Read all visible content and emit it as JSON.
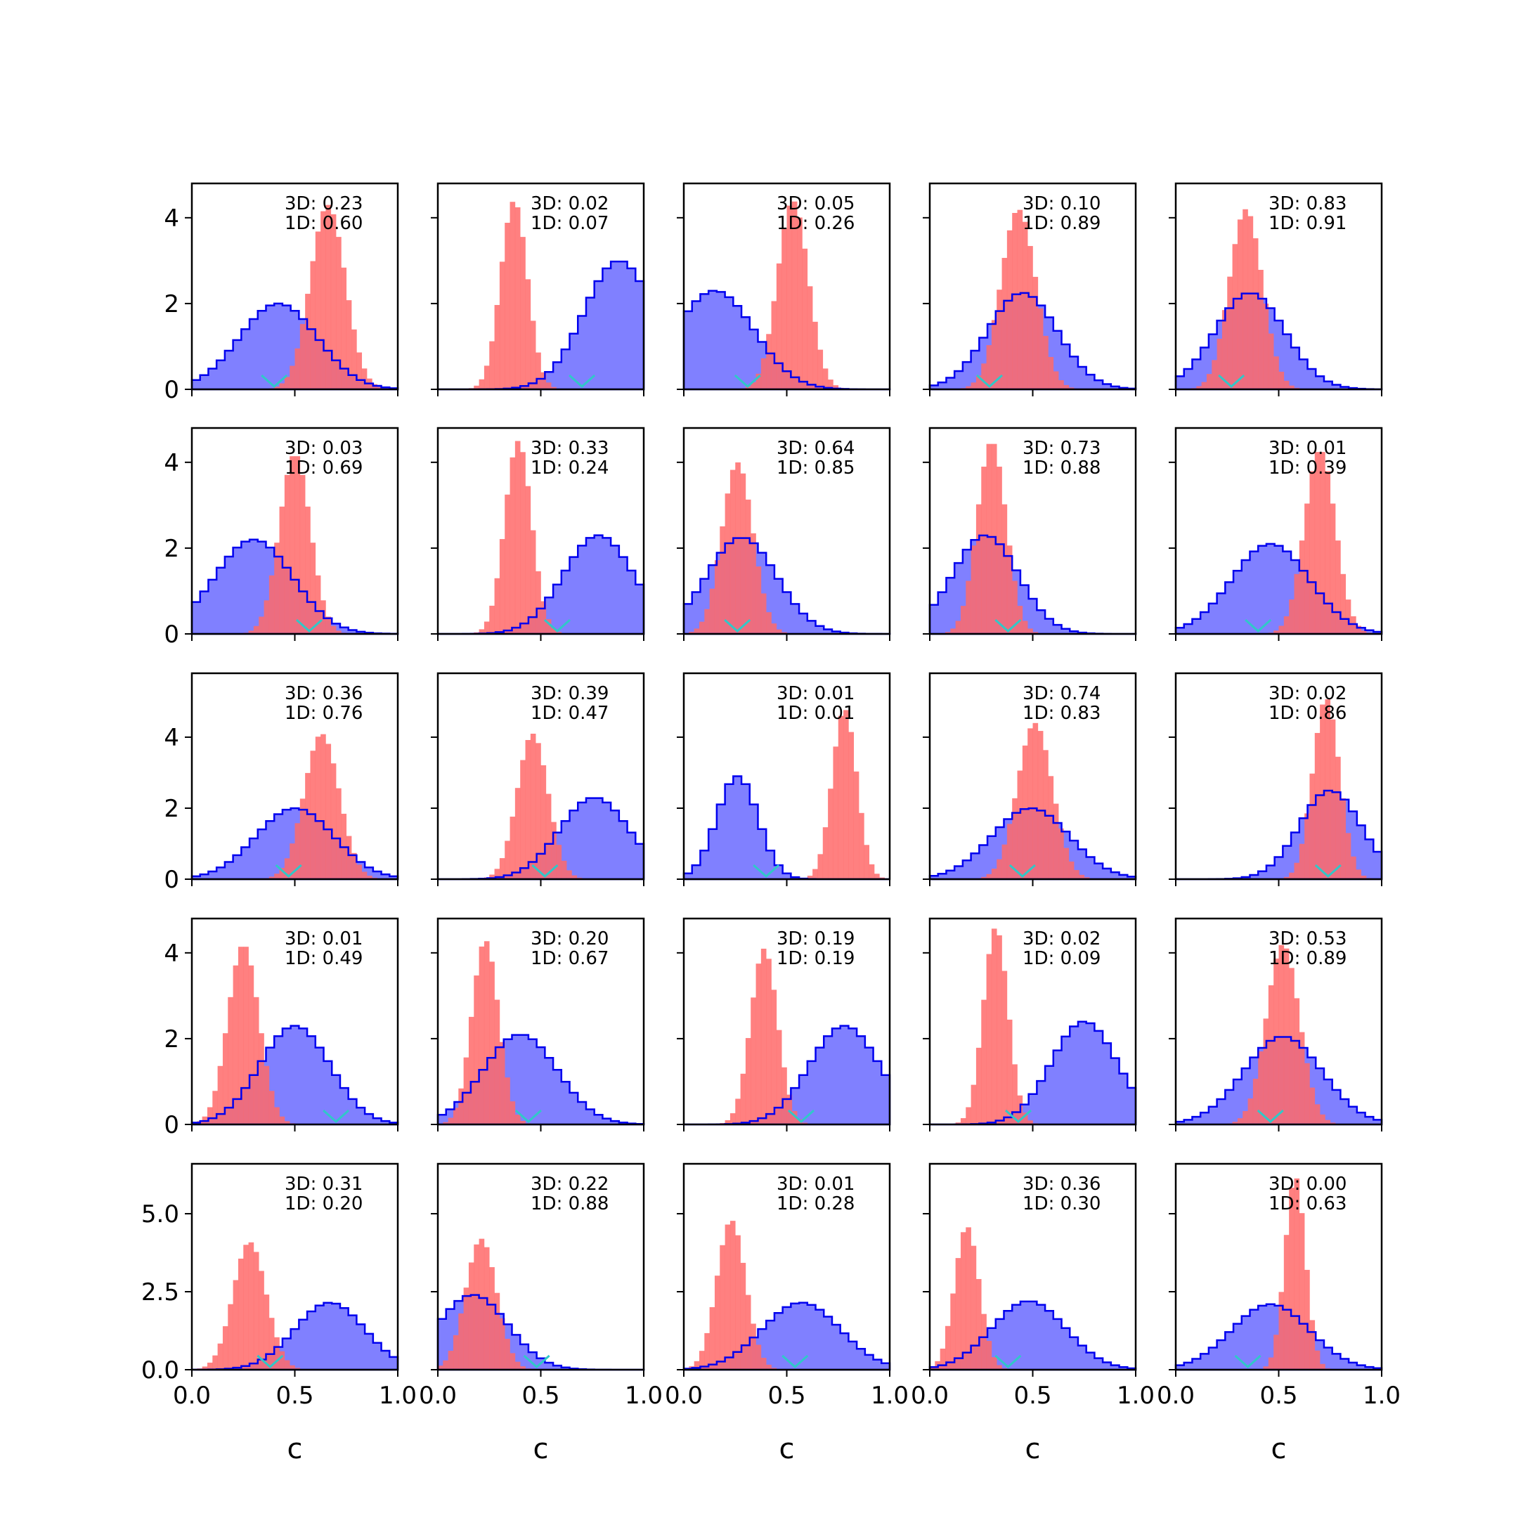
{
  "figure": {
    "xlabel": "c",
    "colors": {
      "blue_fill": "#8080ff",
      "blue_line": "#0000ee",
      "red_fill": "#ff6a6a",
      "marker": "#30c8c8"
    }
  },
  "chart_data": {
    "type": "histogram-grid",
    "rows": 5,
    "cols": 5,
    "xlim": [
      0,
      1
    ],
    "x_ticks": [
      "0.0",
      "0.5",
      "1.0"
    ],
    "row_ylims": [
      [
        0,
        4.8
      ],
      [
        0,
        4.8
      ],
      [
        0,
        5.8
      ],
      [
        0,
        4.8
      ],
      [
        0,
        6.6
      ]
    ],
    "row_yticks": [
      [
        "0",
        "2",
        "4"
      ],
      [
        "0",
        "2",
        "4"
      ],
      [
        "0",
        "2",
        "4"
      ],
      [
        "0",
        "2",
        "4"
      ],
      [
        "0.0",
        "2.5",
        "5.0"
      ]
    ],
    "row_ytick_values": [
      [
        0,
        2,
        4
      ],
      [
        0,
        2,
        4
      ],
      [
        0,
        2,
        4
      ],
      [
        0,
        2,
        4
      ],
      [
        0,
        2.5,
        5.0
      ]
    ],
    "series_legend": [
      "3D",
      "1D"
    ],
    "panels": [
      {
        "row": 0,
        "col": 0,
        "label_3d": "3D: 0.23",
        "label_1d": "1D: 0.60",
        "blue": {
          "mu": 0.42,
          "sigma": 0.19,
          "peak": 2.0
        },
        "red": {
          "mu": 0.66,
          "sigma": 0.085,
          "peak": 4.3
        },
        "marker": 0.4
      },
      {
        "row": 0,
        "col": 1,
        "label_3d": "3D: 0.02",
        "label_1d": "1D: 0.07",
        "blue": {
          "mu": 0.88,
          "sigma": 0.17,
          "peak": 3.0
        },
        "red": {
          "mu": 0.37,
          "sigma": 0.065,
          "peak": 4.4
        },
        "marker": 0.7
      },
      {
        "row": 0,
        "col": 2,
        "label_3d": "3D: 0.05",
        "label_1d": "1D: 0.26",
        "blue": {
          "mu": 0.15,
          "sigma": 0.19,
          "peak": 2.3
        },
        "red": {
          "mu": 0.53,
          "sigma": 0.075,
          "peak": 4.4
        },
        "marker": 0.31
      },
      {
        "row": 0,
        "col": 3,
        "label_3d": "3D: 0.10",
        "label_1d": "1D: 0.89",
        "blue": {
          "mu": 0.45,
          "sigma": 0.17,
          "peak": 2.25
        },
        "red": {
          "mu": 0.43,
          "sigma": 0.085,
          "peak": 4.2
        },
        "marker": 0.29
      },
      {
        "row": 0,
        "col": 4,
        "label_3d": "3D: 0.83",
        "label_1d": "1D: 0.91",
        "blue": {
          "mu": 0.36,
          "sigma": 0.17,
          "peak": 2.25
        },
        "red": {
          "mu": 0.34,
          "sigma": 0.08,
          "peak": 4.2
        },
        "marker": 0.27
      },
      {
        "row": 1,
        "col": 0,
        "label_3d": "3D: 0.03",
        "label_1d": "1D: 0.69",
        "blue": {
          "mu": 0.3,
          "sigma": 0.19,
          "peak": 2.2
        },
        "red": {
          "mu": 0.5,
          "sigma": 0.075,
          "peak": 4.2
        },
        "marker": 0.57
      },
      {
        "row": 1,
        "col": 1,
        "label_3d": "3D: 0.33",
        "label_1d": "1D: 0.24",
        "blue": {
          "mu": 0.78,
          "sigma": 0.17,
          "peak": 2.3
        },
        "red": {
          "mu": 0.39,
          "sigma": 0.065,
          "peak": 4.5
        },
        "marker": 0.58
      },
      {
        "row": 1,
        "col": 2,
        "label_3d": "3D: 0.64",
        "label_1d": "1D: 0.85",
        "blue": {
          "mu": 0.28,
          "sigma": 0.17,
          "peak": 2.25
        },
        "red": {
          "mu": 0.26,
          "sigma": 0.075,
          "peak": 4.0
        },
        "marker": 0.26
      },
      {
        "row": 1,
        "col": 3,
        "label_3d": "3D: 0.73",
        "label_1d": "1D: 0.88",
        "blue": {
          "mu": 0.27,
          "sigma": 0.16,
          "peak": 2.3
        },
        "red": {
          "mu": 0.3,
          "sigma": 0.07,
          "peak": 4.5
        },
        "marker": 0.38
      },
      {
        "row": 1,
        "col": 4,
        "label_3d": "3D: 0.01",
        "label_1d": "1D: 0.39",
        "blue": {
          "mu": 0.46,
          "sigma": 0.19,
          "peak": 2.1
        },
        "red": {
          "mu": 0.7,
          "sigma": 0.075,
          "peak": 4.3
        },
        "marker": 0.4
      },
      {
        "row": 2,
        "col": 0,
        "label_3d": "3D: 0.36",
        "label_1d": "1D: 0.76",
        "blue": {
          "mu": 0.5,
          "sigma": 0.19,
          "peak": 2.0
        },
        "red": {
          "mu": 0.63,
          "sigma": 0.085,
          "peak": 4.1
        },
        "marker": 0.47
      },
      {
        "row": 2,
        "col": 1,
        "label_3d": "3D: 0.39",
        "label_1d": "1D: 0.47",
        "blue": {
          "mu": 0.76,
          "sigma": 0.17,
          "peak": 2.3
        },
        "red": {
          "mu": 0.46,
          "sigma": 0.075,
          "peak": 4.1
        },
        "marker": 0.52
      },
      {
        "row": 2,
        "col": 2,
        "label_3d": "3D: 0.01",
        "label_1d": "1D: 0.01",
        "blue": {
          "mu": 0.26,
          "sigma": 0.1,
          "peak": 2.9
        },
        "red": {
          "mu": 0.78,
          "sigma": 0.06,
          "peak": 4.8
        },
        "marker": 0.4
      },
      {
        "row": 2,
        "col": 3,
        "label_3d": "3D: 0.74",
        "label_1d": "1D: 0.83",
        "blue": {
          "mu": 0.49,
          "sigma": 0.19,
          "peak": 2.0
        },
        "red": {
          "mu": 0.51,
          "sigma": 0.085,
          "peak": 4.4
        },
        "marker": 0.45
      },
      {
        "row": 2,
        "col": 4,
        "label_3d": "3D: 0.02",
        "label_1d": "1D: 0.86",
        "blue": {
          "mu": 0.75,
          "sigma": 0.15,
          "peak": 2.5
        },
        "red": {
          "mu": 0.73,
          "sigma": 0.065,
          "peak": 5.1
        },
        "marker": 0.74
      },
      {
        "row": 3,
        "col": 0,
        "label_3d": "3D: 0.01",
        "label_1d": "1D: 0.49",
        "blue": {
          "mu": 0.5,
          "sigma": 0.17,
          "peak": 2.3
        },
        "red": {
          "mu": 0.25,
          "sigma": 0.075,
          "peak": 4.2
        },
        "marker": 0.7
      },
      {
        "row": 3,
        "col": 1,
        "label_3d": "3D: 0.20",
        "label_1d": "1D: 0.67",
        "blue": {
          "mu": 0.4,
          "sigma": 0.18,
          "peak": 2.1
        },
        "red": {
          "mu": 0.23,
          "sigma": 0.065,
          "peak": 4.3
        },
        "marker": 0.44
      },
      {
        "row": 3,
        "col": 2,
        "label_3d": "3D: 0.19",
        "label_1d": "1D: 0.19",
        "blue": {
          "mu": 0.78,
          "sigma": 0.17,
          "peak": 2.3
        },
        "red": {
          "mu": 0.39,
          "sigma": 0.065,
          "peak": 4.1
        },
        "marker": 0.57
      },
      {
        "row": 3,
        "col": 3,
        "label_3d": "3D: 0.02",
        "label_1d": "1D: 0.09",
        "blue": {
          "mu": 0.75,
          "sigma": 0.16,
          "peak": 2.4
        },
        "red": {
          "mu": 0.32,
          "sigma": 0.06,
          "peak": 4.6
        },
        "marker": 0.43
      },
      {
        "row": 3,
        "col": 4,
        "label_3d": "3D: 0.53",
        "label_1d": "1D: 0.89",
        "blue": {
          "mu": 0.52,
          "sigma": 0.19,
          "peak": 2.05
        },
        "red": {
          "mu": 0.52,
          "sigma": 0.08,
          "peak": 4.2
        },
        "marker": 0.46
      },
      {
        "row": 4,
        "col": 0,
        "label_3d": "3D: 0.31",
        "label_1d": "1D: 0.20",
        "blue": {
          "mu": 0.67,
          "sigma": 0.17,
          "peak": 2.15
        },
        "red": {
          "mu": 0.28,
          "sigma": 0.08,
          "peak": 4.1
        },
        "marker": 0.38
      },
      {
        "row": 4,
        "col": 1,
        "label_3d": "3D: 0.22",
        "label_1d": "1D: 0.88",
        "blue": {
          "mu": 0.17,
          "sigma": 0.17,
          "peak": 2.4
        },
        "red": {
          "mu": 0.21,
          "sigma": 0.075,
          "peak": 4.2
        },
        "marker": 0.48
      },
      {
        "row": 4,
        "col": 2,
        "label_3d": "3D: 0.01",
        "label_1d": "1D: 0.28",
        "blue": {
          "mu": 0.57,
          "sigma": 0.19,
          "peak": 2.15
        },
        "red": {
          "mu": 0.23,
          "sigma": 0.07,
          "peak": 4.8
        },
        "marker": 0.54
      },
      {
        "row": 4,
        "col": 3,
        "label_3d": "3D: 0.36",
        "label_1d": "1D: 0.30",
        "blue": {
          "mu": 0.48,
          "sigma": 0.18,
          "peak": 2.2
        },
        "red": {
          "mu": 0.18,
          "sigma": 0.06,
          "peak": 4.6
        },
        "marker": 0.38
      },
      {
        "row": 4,
        "col": 4,
        "label_3d": "3D: 0.00",
        "label_1d": "1D: 0.63",
        "blue": {
          "mu": 0.46,
          "sigma": 0.19,
          "peak": 2.1
        },
        "red": {
          "mu": 0.58,
          "sigma": 0.05,
          "peak": 6.2
        },
        "marker": 0.35
      }
    ]
  }
}
